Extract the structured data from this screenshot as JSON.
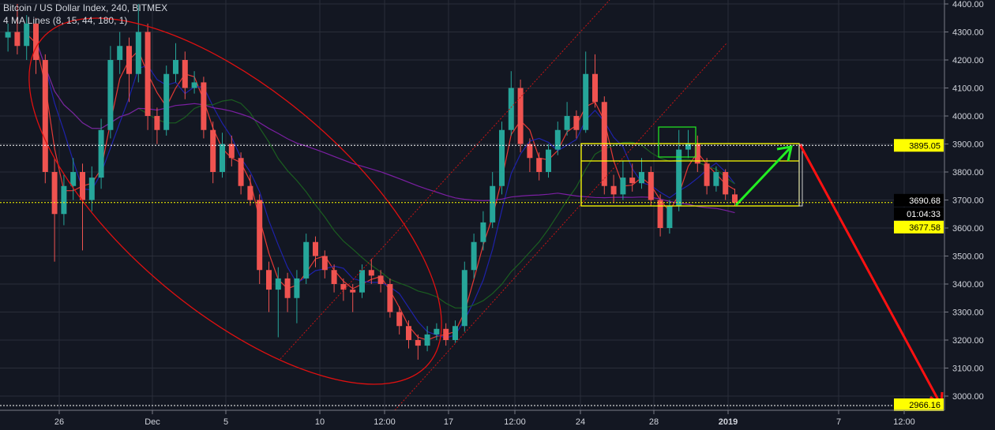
{
  "header": {
    "symbol_title": "Bitcoin / US Dollar Index, 240, BITMEX",
    "indicator_title": "4 MA Lines (8, 15, 44, 180, 1)"
  },
  "chart_data": {
    "type": "candlestick",
    "interval": "240",
    "title": "Bitcoin / US Dollar Index, 240, BITMEX",
    "ylim": [
      3000,
      4400
    ],
    "y_ticks": [
      "3000.00",
      "3100.00",
      "3200.00",
      "3300.00",
      "3400.00",
      "3500.00",
      "3600.00",
      "3700.00",
      "3800.00",
      "3900.00",
      "4000.00",
      "4100.00",
      "4200.00",
      "4300.00",
      "4400.00"
    ],
    "x_ticks": [
      "26",
      "Dec",
      "5",
      "10",
      "12:00",
      "17",
      "12:00",
      "24",
      "28",
      "2019",
      "7",
      "12:00"
    ],
    "grid": true,
    "colors": {
      "up": "#26a69a",
      "down": "#ef5350",
      "ma8": "#e53935",
      "ma15": "#1e22aa",
      "ma44": "#1b5e20",
      "ma180": "#7b1fa2",
      "highlight": "#ffff00",
      "arrow_up": "#22ee22",
      "arrow_down": "#ff1111"
    },
    "candles_ohlc": [
      [
        4280,
        4330,
        4230,
        4300
      ],
      [
        4300,
        4400,
        4220,
        4250
      ],
      [
        4250,
        4360,
        4200,
        4330
      ],
      [
        4330,
        4350,
        4150,
        4200
      ],
      [
        4200,
        4220,
        3760,
        3800
      ],
      [
        3800,
        3850,
        3480,
        3650
      ],
      [
        3650,
        3790,
        3610,
        3750
      ],
      [
        3750,
        3850,
        3700,
        3800
      ],
      [
        3800,
        3830,
        3520,
        3700
      ],
      [
        3700,
        3820,
        3660,
        3780
      ],
      [
        3780,
        3990,
        3740,
        3950
      ],
      [
        3950,
        4250,
        3920,
        4200
      ],
      [
        4200,
        4300,
        4150,
        4250
      ],
      [
        4250,
        4280,
        4050,
        4150
      ],
      [
        4150,
        4400,
        4120,
        4300
      ],
      [
        4300,
        4330,
        3950,
        4000
      ],
      [
        4000,
        4030,
        3900,
        3950
      ],
      [
        3950,
        4180,
        3930,
        4150
      ],
      [
        4150,
        4260,
        4120,
        4200
      ],
      [
        4200,
        4230,
        4060,
        4100
      ],
      [
        4100,
        4160,
        4080,
        4120
      ],
      [
        4120,
        4140,
        3920,
        3950
      ],
      [
        3950,
        3980,
        3760,
        3800
      ],
      [
        3800,
        3940,
        3780,
        3900
      ],
      [
        3900,
        3930,
        3820,
        3850
      ],
      [
        3850,
        3870,
        3720,
        3750
      ],
      [
        3750,
        3790,
        3680,
        3700
      ],
      [
        3700,
        3720,
        3400,
        3450
      ],
      [
        3450,
        3480,
        3300,
        3380
      ],
      [
        3380,
        3460,
        3210,
        3420
      ],
      [
        3420,
        3440,
        3300,
        3350
      ],
      [
        3350,
        3450,
        3260,
        3420
      ],
      [
        3420,
        3580,
        3400,
        3550
      ],
      [
        3550,
        3570,
        3460,
        3500
      ],
      [
        3500,
        3520,
        3420,
        3450
      ],
      [
        3450,
        3470,
        3370,
        3400
      ],
      [
        3400,
        3420,
        3340,
        3380
      ],
      [
        3380,
        3400,
        3300,
        3370
      ],
      [
        3370,
        3470,
        3350,
        3450
      ],
      [
        3450,
        3490,
        3400,
        3430
      ],
      [
        3430,
        3450,
        3370,
        3400
      ],
      [
        3400,
        3420,
        3280,
        3300
      ],
      [
        3300,
        3320,
        3220,
        3250
      ],
      [
        3250,
        3270,
        3170,
        3200
      ],
      [
        3200,
        3220,
        3130,
        3180
      ],
      [
        3180,
        3250,
        3160,
        3220
      ],
      [
        3220,
        3260,
        3200,
        3240
      ],
      [
        3240,
        3260,
        3180,
        3200
      ],
      [
        3200,
        3270,
        3190,
        3250
      ],
      [
        3250,
        3480,
        3230,
        3450
      ],
      [
        3450,
        3580,
        3420,
        3550
      ],
      [
        3550,
        3660,
        3520,
        3620
      ],
      [
        3620,
        3800,
        3600,
        3750
      ],
      [
        3750,
        3980,
        3720,
        3950
      ],
      [
        3950,
        4160,
        3930,
        4100
      ],
      [
        4100,
        4130,
        3870,
        3900
      ],
      [
        3900,
        3920,
        3800,
        3850
      ],
      [
        3850,
        3870,
        3770,
        3800
      ],
      [
        3800,
        3900,
        3780,
        3880
      ],
      [
        3880,
        3980,
        3860,
        3950
      ],
      [
        3950,
        4050,
        3930,
        4000
      ],
      [
        4000,
        4020,
        3920,
        3950
      ],
      [
        3950,
        4230,
        3940,
        4150
      ],
      [
        4150,
        4220,
        4030,
        4050
      ],
      [
        4050,
        4070,
        3720,
        3750
      ],
      [
        3750,
        3790,
        3690,
        3720
      ],
      [
        3720,
        3840,
        3700,
        3780
      ],
      [
        3780,
        3830,
        3730,
        3760
      ],
      [
        3760,
        3850,
        3740,
        3800
      ],
      [
        3800,
        3820,
        3680,
        3700
      ],
      [
        3700,
        3720,
        3570,
        3600
      ],
      [
        3600,
        3700,
        3580,
        3680
      ],
      [
        3680,
        3950,
        3660,
        3880
      ],
      [
        3880,
        3950,
        3850,
        3900
      ],
      [
        3900,
        3930,
        3800,
        3830
      ],
      [
        3830,
        3850,
        3720,
        3750
      ],
      [
        3750,
        3820,
        3730,
        3800
      ],
      [
        3800,
        3810,
        3700,
        3720
      ],
      [
        3720,
        3740,
        3680,
        3690.68
      ]
    ],
    "ma_periods": [
      8,
      15,
      44,
      180
    ],
    "price_levels": {
      "target_high": {
        "value": 3895.05,
        "label": "3895.05"
      },
      "last_price": {
        "value": 3690.68,
        "label": "3690.68"
      },
      "countdown": "01:04:33",
      "support": {
        "value": 3677.58,
        "label": "3677.58"
      },
      "target_low": {
        "value": 2966.16,
        "label": "2966.16"
      }
    }
  }
}
